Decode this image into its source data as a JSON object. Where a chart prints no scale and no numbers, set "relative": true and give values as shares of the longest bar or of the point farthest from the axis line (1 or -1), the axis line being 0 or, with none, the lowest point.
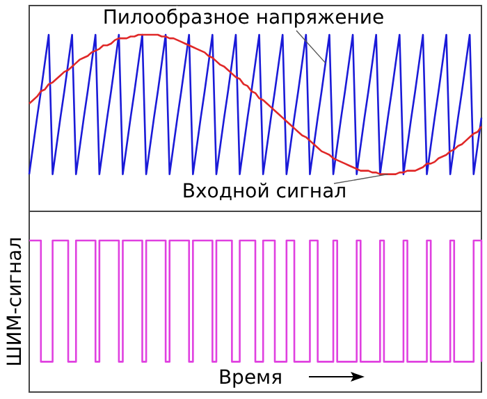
{
  "chart_data": [
    {
      "type": "line",
      "relative": true,
      "marker": "none",
      "line_style": "solid",
      "categories": [
        null,
        null,
        null,
        null,
        null,
        null,
        null,
        null,
        null,
        null,
        null,
        null,
        null,
        null,
        null,
        null,
        null,
        null,
        null,
        null,
        null,
        null,
        null,
        null,
        null,
        null,
        null,
        null,
        null,
        null,
        null,
        null,
        null,
        null,
        null,
        null,
        null,
        null,
        null,
        null,
        null,
        null,
        null,
        null,
        null,
        null,
        null,
        null,
        null,
        null,
        null,
        null,
        null,
        null,
        null,
        null,
        null,
        null,
        null,
        null,
        null,
        null,
        null,
        null,
        null,
        null,
        null,
        null,
        null,
        null,
        null,
        null,
        null,
        null,
        null,
        null,
        null,
        null,
        null,
        null,
        null,
        null,
        null,
        null,
        null,
        null,
        null,
        null,
        null,
        null,
        null,
        null,
        null,
        null,
        null,
        null,
        null,
        null,
        null,
        null,
        null,
        null,
        null,
        null,
        null,
        null,
        null,
        null,
        null,
        null,
        null,
        null,
        null,
        null,
        null,
        null,
        null
      ],
      "series": [
        {
          "name": "Пилообразное напряжение",
          "color": "#1a1ad8",
          "values": [
            0.21,
            0.37,
            0.53,
            0.68,
            0.84,
            1,
            0.21,
            0.37,
            0.53,
            0.68,
            0.84,
            1,
            0.21,
            0.37,
            0.53,
            0.68,
            0.84,
            1,
            0.21,
            0.37,
            0.53,
            0.68,
            0.84,
            1,
            0.21,
            0.37,
            0.53,
            0.68,
            0.84,
            1,
            0.21,
            0.37,
            0.53,
            0.68,
            0.84,
            1,
            0.21,
            0.37,
            0.53,
            0.68,
            0.84,
            1,
            0.21,
            0.37,
            0.53,
            0.68,
            0.84,
            1,
            0.21,
            0.37,
            0.53,
            0.68,
            0.84,
            1,
            0.21,
            0.37,
            0.53,
            0.68,
            0.84,
            1,
            0.21,
            0.37,
            0.53,
            0.68,
            0.84,
            1,
            0.21,
            0.37,
            0.53,
            0.68,
            0.84,
            1,
            0.21,
            0.37,
            0.53,
            0.68,
            0.84,
            1,
            0.21,
            0.37,
            0.53,
            0.68,
            0.84,
            1,
            0.21,
            0.37,
            0.53,
            0.68,
            0.84,
            1,
            0.21,
            0.37,
            0.53,
            0.68,
            0.84,
            1,
            0.21,
            0.37,
            0.53,
            0.68,
            0.84,
            1,
            0.21,
            0.37,
            0.53,
            0.68,
            0.84,
            1,
            0.21,
            0.37,
            0.53,
            0.68,
            0.84,
            1,
            0.21,
            0.37,
            0.53
          ]
        },
        {
          "name": "Входной сигнал",
          "color": "#e02828",
          "values": [
            0.61,
            0.63,
            0.65,
            0.68,
            0.69,
            0.72,
            0.73,
            0.75,
            0.77,
            0.79,
            0.8,
            0.82,
            0.84,
            0.86,
            0.87,
            0.88,
            0.9,
            0.91,
            0.92,
            0.94,
            0.94,
            0.95,
            0.97,
            0.98,
            0.98,
            0.98,
            0.99,
            0.99,
            1,
            1,
            1,
            1,
            1,
            1,
            0.99,
            0.99,
            0.98,
            0.98,
            0.97,
            0.96,
            0.95,
            0.94,
            0.93,
            0.92,
            0.91,
            0.9,
            0.88,
            0.87,
            0.85,
            0.83,
            0.82,
            0.8,
            0.78,
            0.76,
            0.75,
            0.72,
            0.71,
            0.68,
            0.67,
            0.64,
            0.63,
            0.61,
            0.59,
            0.57,
            0.55,
            0.53,
            0.51,
            0.49,
            0.47,
            0.45,
            0.43,
            0.42,
            0.4,
            0.38,
            0.36,
            0.34,
            0.33,
            0.32,
            0.3,
            0.29,
            0.28,
            0.27,
            0.26,
            0.25,
            0.24,
            0.23,
            0.23,
            0.23,
            0.22,
            0.22,
            0.21,
            0.21,
            0.21,
            0.21,
            0.21,
            0.22,
            0.22,
            0.23,
            0.23,
            0.23,
            0.24,
            0.25,
            0.27,
            0.27,
            0.28,
            0.3,
            0.31,
            0.32,
            0.34,
            0.35,
            0.37,
            0.38,
            0.4,
            0.42,
            0.44,
            0.45,
            0.48
          ]
        }
      ]
    },
    {
      "type": "step",
      "relative": true,
      "marker": "none",
      "line_style": "solid",
      "ylabel": "ШИМ-сигнал",
      "xlabel": "Время",
      "categories": [
        null,
        null,
        null,
        null,
        null,
        null,
        null,
        null,
        null,
        null,
        null,
        null,
        null,
        null,
        null,
        null,
        null,
        null,
        null,
        null,
        null,
        null,
        null,
        null,
        null,
        null,
        null,
        null,
        null,
        null,
        null,
        null,
        null,
        null,
        null,
        null,
        null,
        null,
        null,
        null,
        null,
        null,
        null,
        null,
        null,
        null,
        null,
        null,
        null,
        null,
        null,
        null,
        null,
        null,
        null,
        null,
        null,
        null,
        null,
        null,
        null,
        null,
        null,
        null,
        null,
        null,
        null,
        null,
        null,
        null,
        null,
        null,
        null,
        null,
        null,
        null,
        null,
        null,
        null,
        null,
        null,
        null,
        null,
        null,
        null,
        null,
        null,
        null,
        null,
        null,
        null,
        null,
        null,
        null,
        null,
        null,
        null,
        null,
        null,
        null,
        null,
        null,
        null,
        null,
        null,
        null,
        null,
        null,
        null,
        null,
        null,
        null,
        null,
        null,
        null,
        null,
        null
      ],
      "series": [
        {
          "color": "#e040e0",
          "values": [
            1,
            1,
            1,
            0.2,
            0.2,
            0.2,
            1,
            1,
            1,
            1,
            0.2,
            0.2,
            1,
            1,
            1,
            1,
            1,
            0.2,
            1,
            1,
            1,
            1,
            1,
            0.2,
            1,
            1,
            1,
            1,
            1,
            0.2,
            1,
            1,
            1,
            1,
            1,
            0.2,
            1,
            1,
            1,
            1,
            1,
            0.2,
            1,
            1,
            1,
            1,
            1,
            0.2,
            1,
            1,
            1,
            1,
            0.2,
            0.2,
            1,
            1,
            1,
            1,
            0.2,
            0.2,
            1,
            1,
            1,
            0.2,
            0.2,
            0.2,
            1,
            1,
            0.2,
            0.2,
            0.2,
            0.2,
            1,
            1,
            0.2,
            0.2,
            0.2,
            0.2,
            1,
            0.2,
            0.2,
            0.2,
            0.2,
            0.2,
            1,
            0.2,
            0.2,
            0.2,
            0.2,
            0.2,
            1,
            0.2,
            0.2,
            0.2,
            0.2,
            0.2,
            1,
            0.2,
            0.2,
            0.2,
            0.2,
            0.2,
            1,
            0.2,
            0.2,
            0.2,
            0.2,
            0.2,
            1,
            0.2,
            0.2,
            0.2,
            0.2,
            0.2,
            1,
            1,
            0.2
          ]
        }
      ]
    }
  ]
}
